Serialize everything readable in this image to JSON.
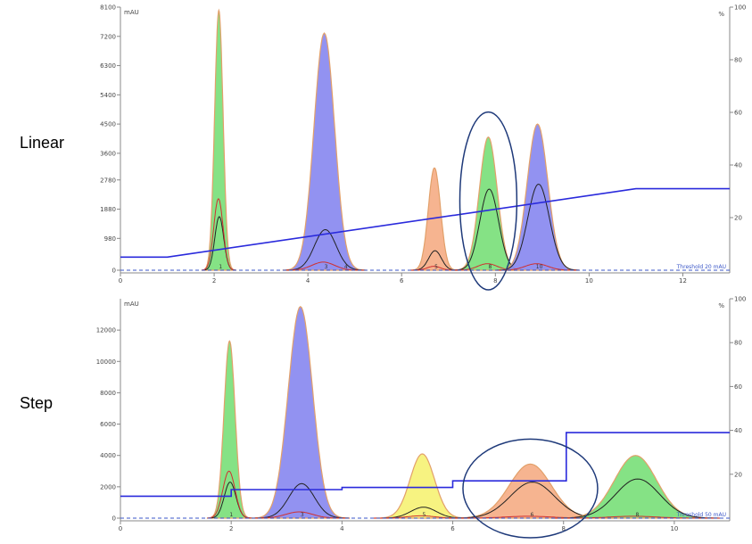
{
  "labels": {
    "top": "Linear",
    "bottom": "Step"
  },
  "colors": {
    "green": "#7ee07e",
    "blue": "#8c8cf0",
    "orange": "#f5b08a",
    "yellow": "#f7f27a",
    "outline": "#e2a06a",
    "black_trace": "#222222",
    "red_trace": "#d03030",
    "gradient": "#2a2adc",
    "baseline": "#3b57c8",
    "axis": "#888888",
    "circle": "#1f3a7a"
  },
  "chart_data": [
    {
      "type": "area",
      "panel": "Linear",
      "y_unit": "mAU",
      "y2_unit": "%",
      "xlim": [
        0,
        13
      ],
      "ylim": [
        0,
        8100
      ],
      "y2lim": [
        0,
        100
      ],
      "xticks": [
        "0",
        "2",
        "4",
        "6",
        "8",
        "10",
        "12"
      ],
      "xtick_values": [
        0,
        2,
        4,
        6,
        8,
        10,
        12
      ],
      "yticks": [
        "0",
        "980",
        "1880",
        "2780",
        "3600",
        "4500",
        "5400",
        "6300",
        "7200",
        "8100"
      ],
      "ytick_values": [
        0,
        980,
        1880,
        2780,
        3600,
        4500,
        5400,
        6300,
        7200,
        8100
      ],
      "y2ticks": [
        "20",
        "40",
        "60",
        "80",
        "100"
      ],
      "y2tick_values": [
        20,
        40,
        60,
        80,
        100
      ],
      "threshold_text": "Threshold 20 mAU",
      "peaks": [
        {
          "center": 2.1,
          "height": 8000,
          "width": 0.09,
          "color": "green",
          "black": 1650,
          "red": 2200,
          "label": "1"
        },
        {
          "center": 4.35,
          "height": 7300,
          "width": 0.22,
          "color": "blue",
          "black": 1250,
          "red": 250,
          "label": "3",
          "extra": "4"
        },
        {
          "center": 6.7,
          "height": 3150,
          "width": 0.13,
          "color": "orange",
          "black": 600,
          "red": 120,
          "label": "5"
        },
        {
          "center": 7.85,
          "height": 4100,
          "width": 0.19,
          "color": "green",
          "black": 2500,
          "red": 200,
          "label": "8"
        },
        {
          "center": 8.9,
          "height": 4500,
          "width": 0.22,
          "color": "blue",
          "black": 2650,
          "red": 200,
          "label": "10"
        }
      ],
      "gradient_percent": [
        [
          0,
          5
        ],
        [
          1,
          5
        ],
        [
          11,
          31
        ],
        [
          13,
          31
        ]
      ],
      "highlight_peak": 3
    },
    {
      "type": "area",
      "panel": "Step",
      "y_unit": "mAU",
      "y2_unit": "%",
      "xlim": [
        0,
        11
      ],
      "ylim": [
        0,
        14000
      ],
      "y2lim": [
        0,
        100
      ],
      "xticks": [
        "0",
        "2",
        "4",
        "6",
        "8",
        "10"
      ],
      "xtick_values": [
        0,
        2,
        4,
        6,
        8,
        10
      ],
      "yticks": [
        "0",
        "2000",
        "4000",
        "6000",
        "8000",
        "10000",
        "12000"
      ],
      "ytick_values": [
        0,
        2000,
        4000,
        6000,
        8000,
        10000,
        12000
      ],
      "y2ticks": [
        "20",
        "40",
        "60",
        "80",
        "100"
      ],
      "y2tick_values": [
        20,
        40,
        60,
        80,
        100
      ],
      "threshold_text": "Threshold 50 mAU",
      "peaks": [
        {
          "center": 1.97,
          "height": 11300,
          "width": 0.1,
          "color": "green",
          "black": 2300,
          "red": 3000,
          "label": "1"
        },
        {
          "center": 3.25,
          "height": 13500,
          "width": 0.22,
          "color": "blue",
          "black": 2200,
          "red": 400,
          "label": "3"
        },
        {
          "center": 5.45,
          "height": 4100,
          "width": 0.22,
          "color": "yellow",
          "black": 700,
          "red": 150,
          "label": "5"
        },
        {
          "center": 7.4,
          "height": 3450,
          "width": 0.38,
          "color": "orange",
          "black": 2300,
          "red": 120,
          "label": "6"
        },
        {
          "center": 9.3,
          "height": 4000,
          "width": 0.38,
          "color": "green",
          "black": 2500,
          "red": 120,
          "label": "8"
        }
      ],
      "gradient_percent": [
        [
          0,
          10
        ],
        [
          2,
          10
        ],
        [
          2,
          13
        ],
        [
          4,
          13
        ],
        [
          4,
          14
        ],
        [
          6,
          14
        ],
        [
          6,
          17
        ],
        [
          8.05,
          17
        ],
        [
          8.05,
          39
        ],
        [
          11,
          39
        ]
      ],
      "highlight_peak": 3
    }
  ]
}
